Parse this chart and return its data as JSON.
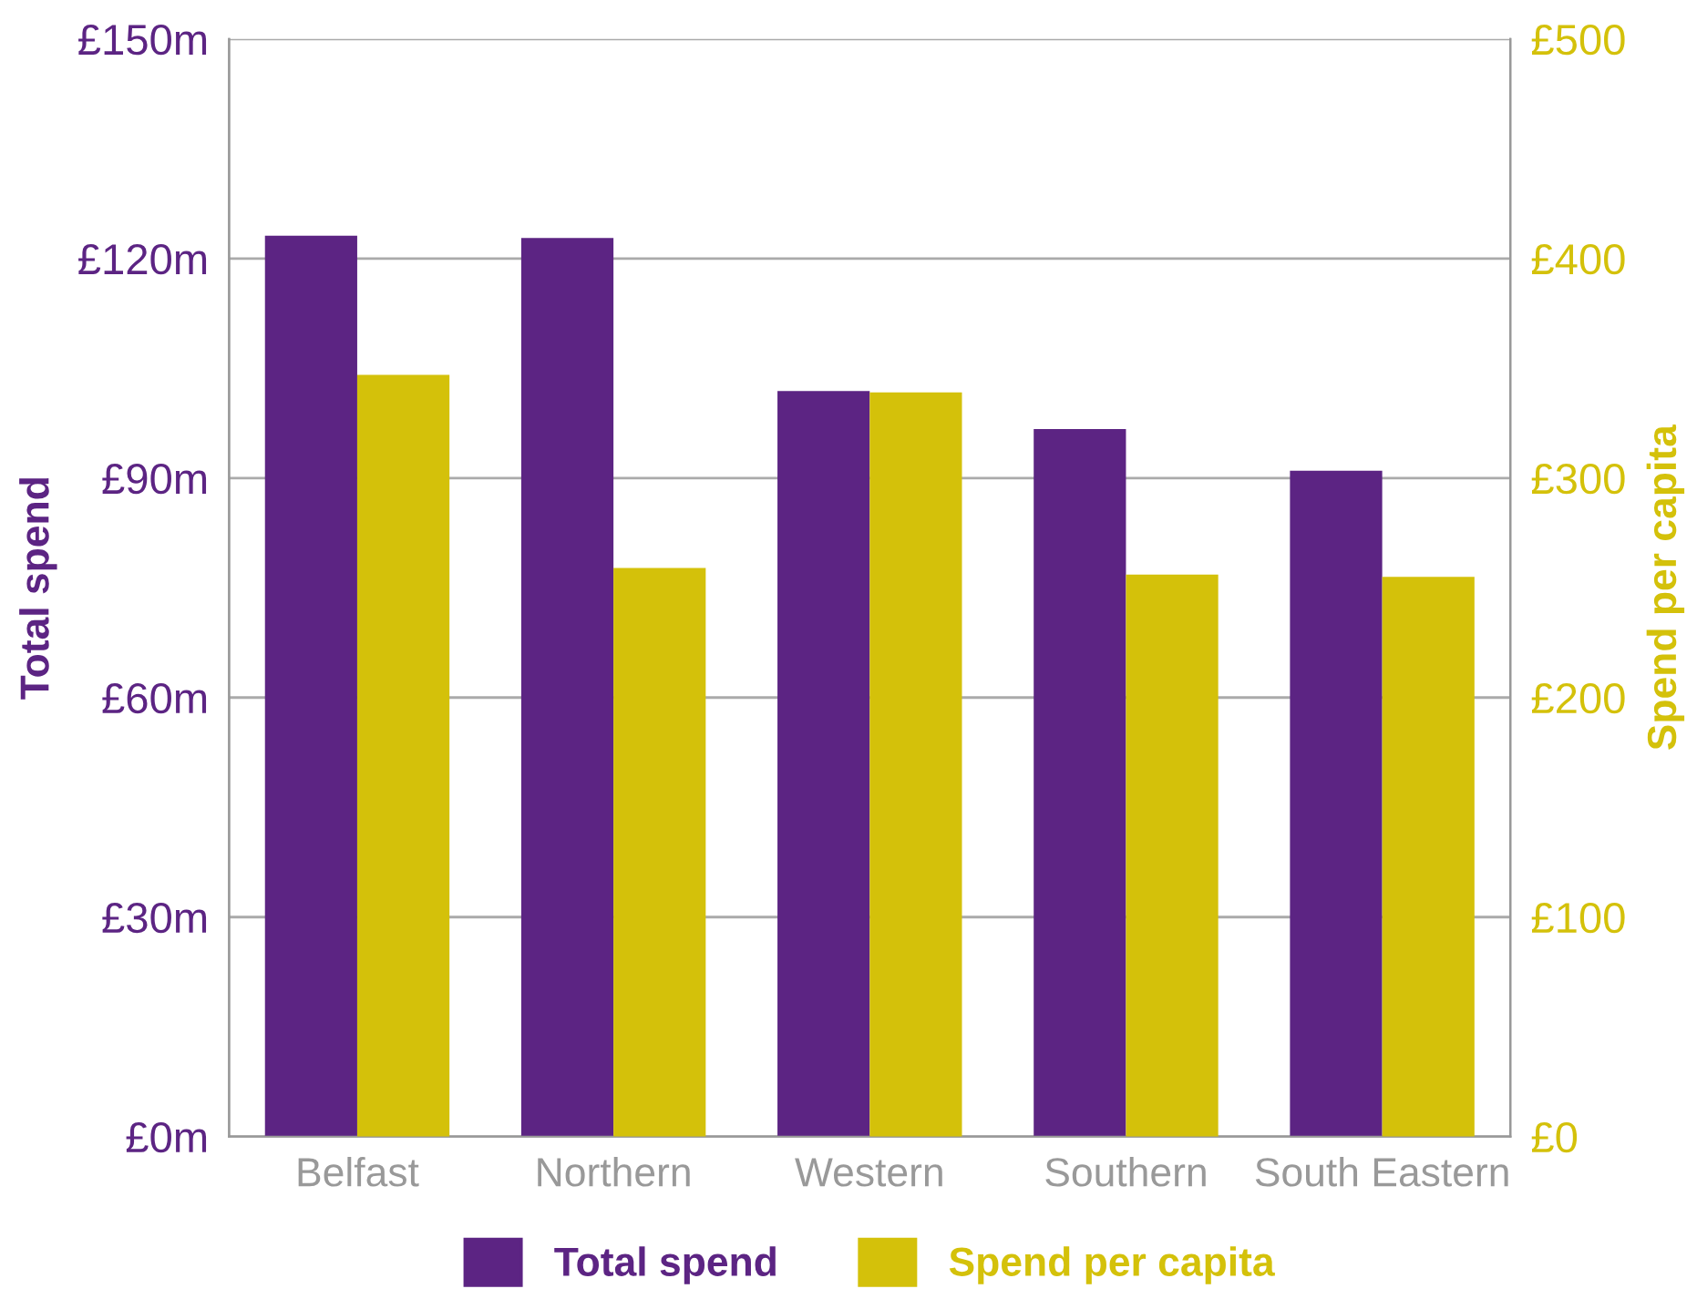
{
  "chart_data": {
    "type": "bar",
    "categories": [
      "Belfast",
      "Northern",
      "Western",
      "Southern",
      "South Eastern"
    ],
    "series": [
      {
        "name": "Total spend",
        "color": "#5c2483",
        "values": [
          123.1,
          122.8,
          101.9,
          96.7,
          91
        ]
      },
      {
        "name": "Spend per capita",
        "color": "#d4c10a",
        "axis": "y2",
        "values": [
          347,
          259,
          339,
          256,
          255
        ]
      }
    ],
    "ylabel": "Total spend",
    "y2label": "Spend per capita",
    "ylim": [
      0,
      150
    ],
    "yticks": [
      {
        "value": 0,
        "label": "£0m"
      },
      {
        "value": 30,
        "label": "£30m"
      },
      {
        "value": 60,
        "label": "£60m"
      },
      {
        "value": 90,
        "label": "£90m"
      },
      {
        "value": 120,
        "label": "£120m"
      },
      {
        "value": 150,
        "label": "£150m"
      }
    ],
    "y2lim": [
      0,
      500
    ],
    "y2ticks": [
      {
        "value": 0,
        "label": "£0"
      },
      {
        "value": 100,
        "label": "£100"
      },
      {
        "value": 200,
        "label": "£200"
      },
      {
        "value": 300,
        "label": "£300"
      },
      {
        "value": 400,
        "label": "£400"
      },
      {
        "value": 500,
        "label": "£500"
      }
    ],
    "grid": "y",
    "legend": "bottom"
  }
}
